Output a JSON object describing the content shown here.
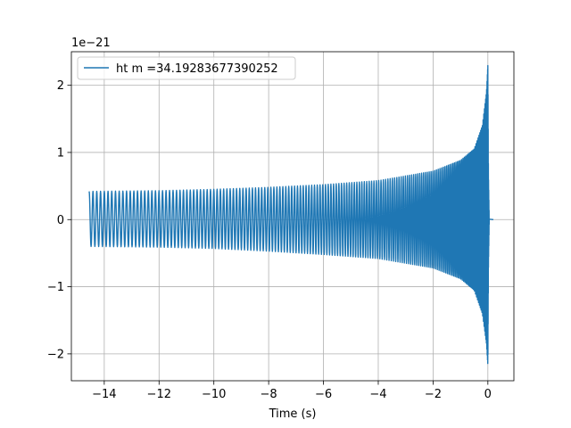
{
  "chart_data": {
    "type": "line",
    "title": "",
    "xlabel": "Time (s)",
    "ylabel": "",
    "y_offset_text": "1e−21",
    "xlim": [
      -15.2,
      0.95
    ],
    "ylim": [
      -2.4,
      2.5
    ],
    "x_ticks": [
      -14,
      -12,
      -10,
      -8,
      -6,
      -4,
      -2,
      0
    ],
    "x_tick_labels": [
      "−14",
      "−12",
      "−10",
      "−8",
      "−6",
      "−4",
      "−2",
      "0"
    ],
    "y_ticks": [
      -2,
      -1,
      0,
      1,
      2
    ],
    "y_tick_labels": [
      "−2",
      "−1",
      "0",
      "1",
      "2"
    ],
    "grid": true,
    "legend_location": "upper left",
    "color": "#1f77b4",
    "series": [
      {
        "name": "ht m =34.19283677390252",
        "t_start": -14.55,
        "t_merger": 0.0,
        "t_end": 0.2,
        "envelope_t": [
          -14.55,
          -12,
          -10,
          -8,
          -6,
          -4,
          -2,
          -1,
          -0.5,
          -0.2,
          -0.05,
          0.0,
          0.02,
          0.05,
          0.2
        ],
        "envelope_max": [
          0.42,
          0.43,
          0.45,
          0.48,
          0.52,
          0.58,
          0.72,
          0.88,
          1.05,
          1.4,
          1.9,
          2.3,
          0.7,
          0.0,
          0.0
        ],
        "envelope_min": [
          -0.4,
          -0.41,
          -0.43,
          -0.47,
          -0.52,
          -0.58,
          -0.72,
          -0.88,
          -1.05,
          -1.4,
          -1.85,
          -2.17,
          -0.75,
          0.0,
          0.0
        ]
      }
    ]
  }
}
